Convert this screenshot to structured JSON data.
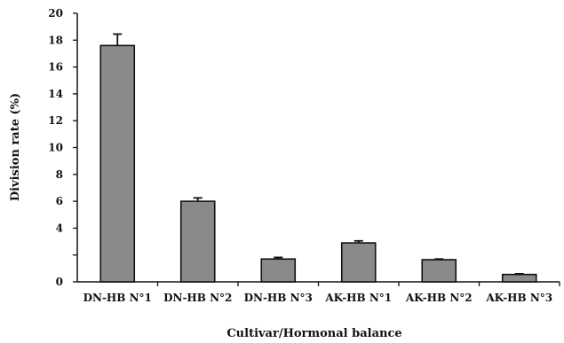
{
  "chart_data": {
    "type": "bar",
    "title": "",
    "xlabel": "Cultivar/Hormonal balance",
    "ylabel": "Division rate (%)",
    "ylim": [
      0,
      20
    ],
    "yticks": [
      0,
      2,
      4,
      6,
      8,
      10,
      12,
      14,
      16,
      18,
      20
    ],
    "ytick_labels": [
      "0",
      "",
      "4",
      "6",
      "8",
      "10",
      "12",
      "14",
      "16",
      "18",
      "20"
    ],
    "categories": [
      "DN-HB N°1",
      "DN-HB N°2",
      "DN-HB N°3",
      "AK-HB N°1",
      "AK-HB N°2",
      "AK-HB N°3"
    ],
    "values": [
      17.6,
      6.0,
      1.7,
      2.9,
      1.65,
      0.55
    ],
    "errors": [
      0.85,
      0.25,
      0.12,
      0.15,
      0.05,
      0.05
    ],
    "bar_color": "#8a8a8a",
    "grid": false,
    "legend": "none"
  }
}
